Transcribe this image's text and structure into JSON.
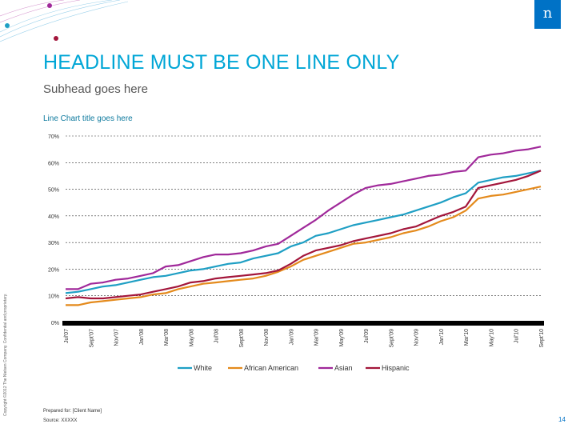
{
  "headline": "HEADLINE MUST BE ONE LINE ONLY",
  "subhead": "Subhead goes here",
  "copyright": "Copyright ©2012 The Nielsen Company. Confidential and proprietary.",
  "footer": {
    "prepared": "Prepared for: [Client Name]",
    "source": "Source: XXXXX"
  },
  "page_number": "14",
  "logo_letter": "n",
  "colors": {
    "accent": "#00a6d6",
    "logo": "#0072c6"
  },
  "chart_data": {
    "type": "line",
    "title": "Line Chart title goes here",
    "xlabel": "",
    "ylabel": "",
    "ylim": [
      0,
      70
    ],
    "yticks": [
      "0%",
      "10%",
      "20%",
      "30%",
      "40%",
      "50%",
      "60%",
      "70%"
    ],
    "x": [
      "Jul'07",
      "Aug'07",
      "Sept'07",
      "Oct'07",
      "Nov'07",
      "Dec'07",
      "Jan'08",
      "Feb'08",
      "Mar'08",
      "Apr'08",
      "May'08",
      "Jun'08",
      "Jul'08",
      "Aug'08",
      "Sept'08",
      "Oct'08",
      "Nov'08",
      "Dec'08",
      "Jan'09",
      "Feb'09",
      "Mar'09",
      "Apr'09",
      "May'09",
      "Jun'09",
      "Jul'09",
      "Aug'09",
      "Sept'09",
      "Oct'09",
      "Nov'09",
      "Dec'09",
      "Jan'10",
      "Feb'10",
      "Mar'10",
      "Apr'10",
      "May'10",
      "Jun'10",
      "Jul'10",
      "Aug'10",
      "Sept'10"
    ],
    "x_tick_labels": [
      "Jul'07",
      "Sept'07",
      "Nov'07",
      "Jan'08",
      "Mar'08",
      "May'08",
      "Jul'08",
      "Sept'08",
      "Nov'08",
      "Jan'09",
      "Mar'09",
      "May'09",
      "Jul'09",
      "Sept'09",
      "Nov'09",
      "Jan'10",
      "Mar'10",
      "May'10",
      "Jul'10",
      "Sept'10"
    ],
    "legend_position": "bottom",
    "grid": true,
    "series": [
      {
        "name": "White",
        "color": "#1f9fc4",
        "values": [
          11,
          11.5,
          12.5,
          13.5,
          14,
          15,
          16,
          17,
          17.5,
          18.5,
          19.5,
          20,
          21,
          22,
          22.5,
          24,
          25,
          26,
          28.5,
          30,
          32.5,
          33.5,
          35,
          36.5,
          37.5,
          38.5,
          39.5,
          40.5,
          42,
          43.5,
          45,
          47,
          48.5,
          52.5,
          53.5,
          54.5,
          55,
          56,
          57
        ]
      },
      {
        "name": "African American",
        "color": "#e48a1c",
        "values": [
          6.5,
          6.5,
          7.5,
          8,
          8.5,
          9,
          9.5,
          10.5,
          11,
          12.5,
          13.5,
          14.5,
          15,
          15.5,
          16,
          16.5,
          17.5,
          19,
          21,
          23.5,
          25,
          26.5,
          28,
          29.5,
          30,
          31,
          32,
          33.5,
          34.5,
          36,
          38,
          39.5,
          42,
          46.5,
          47.5,
          48,
          49,
          50,
          51
        ]
      },
      {
        "name": "Asian",
        "color": "#a0299a",
        "values": [
          12.5,
          12.5,
          14.5,
          15,
          16,
          16.5,
          17.5,
          18.5,
          21,
          21.5,
          23,
          24.5,
          25.5,
          25.5,
          26,
          27,
          28.5,
          29.5,
          32.5,
          35.5,
          38.5,
          42,
          45,
          48,
          50.5,
          51.5,
          52,
          53,
          54,
          55,
          55.5,
          56.5,
          57,
          62,
          63,
          63.5,
          64.5,
          65,
          66
        ]
      },
      {
        "name": "Hispanic",
        "color": "#a3163b",
        "values": [
          9,
          9.5,
          9,
          9,
          9.5,
          10,
          10.5,
          11.5,
          12.5,
          13.5,
          15,
          15.5,
          16.5,
          17,
          17.5,
          18,
          18.5,
          19.5,
          22,
          25,
          27,
          28,
          29,
          30.5,
          31.5,
          32.5,
          33.5,
          35,
          36,
          38,
          40,
          41.5,
          43.5,
          50.5,
          51.5,
          52.5,
          53.5,
          55,
          57
        ]
      }
    ]
  }
}
